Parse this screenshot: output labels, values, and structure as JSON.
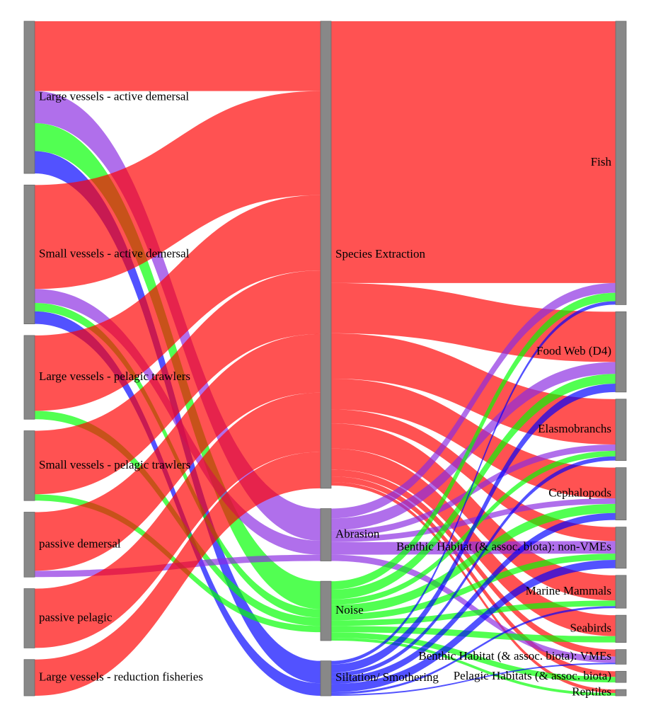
{
  "colors": {
    "Species Extraction": "#ff0000",
    "Abrasion": "#8a2be2",
    "Noise": "#00ff00",
    "Siltation/ Smothering": "#0000ff",
    "node": "#888888"
  },
  "nodes": [
    {
      "id": "ld",
      "label": "Large vessels - active demersal",
      "col": 0
    },
    {
      "id": "sd",
      "label": "Small vessels - active demersal",
      "col": 0
    },
    {
      "id": "lp",
      "label": "Large vessels - pelagic trawlers",
      "col": 0
    },
    {
      "id": "sp",
      "label": "Small vessels - pelagic trawlers",
      "col": 0
    },
    {
      "id": "pd",
      "label": "passive demersal",
      "col": 0
    },
    {
      "id": "pp",
      "label": "passive pelagic",
      "col": 0
    },
    {
      "id": "lr",
      "label": "Large vessels - reduction fisheries",
      "col": 0
    },
    {
      "id": "se",
      "label": "Species Extraction",
      "col": 1
    },
    {
      "id": "ab",
      "label": "Abrasion",
      "col": 1
    },
    {
      "id": "no",
      "label": "Noise",
      "col": 1
    },
    {
      "id": "si",
      "label": "Siltation/ Smothering",
      "col": 1
    },
    {
      "id": "fi",
      "label": "Fish",
      "col": 2
    },
    {
      "id": "fw",
      "label": "Food Web (D4)",
      "col": 2
    },
    {
      "id": "el",
      "label": "Elasmobranchs",
      "col": 2
    },
    {
      "id": "ce",
      "label": "Cephalopods",
      "col": 2
    },
    {
      "id": "bn",
      "label": "Benthic Habitat (& assoc. biota): non-VMEs",
      "col": 2
    },
    {
      "id": "mm",
      "label": "Marine Mammals",
      "col": 2
    },
    {
      "id": "sb",
      "label": "Seabirds",
      "col": 2
    },
    {
      "id": "bv",
      "label": "Benthic Habitat (& assoc. biota): VMEs",
      "col": 2
    },
    {
      "id": "ph",
      "label": "Pelagic Habitats (& assoc. biota)",
      "col": 2
    },
    {
      "id": "re",
      "label": "Reptiles",
      "col": 2
    }
  ],
  "links": [
    {
      "source": "ld",
      "target": "se",
      "value": 10.0,
      "pressure": "Species Extraction"
    },
    {
      "source": "ld",
      "target": "ab",
      "value": 4.6,
      "pressure": "Abrasion"
    },
    {
      "source": "ld",
      "target": "no",
      "value": 4.0,
      "pressure": "Noise"
    },
    {
      "source": "ld",
      "target": "si",
      "value": 3.2,
      "pressure": "Siltation/ Smothering"
    },
    {
      "source": "sd",
      "target": "se",
      "value": 14.9,
      "pressure": "Species Extraction"
    },
    {
      "source": "sd",
      "target": "ab",
      "value": 2.0,
      "pressure": "Abrasion"
    },
    {
      "source": "sd",
      "target": "no",
      "value": 1.2,
      "pressure": "Noise"
    },
    {
      "source": "sd",
      "target": "si",
      "value": 1.8,
      "pressure": "Siltation/ Smothering"
    },
    {
      "source": "lp",
      "target": "se",
      "value": 10.8,
      "pressure": "Species Extraction"
    },
    {
      "source": "lp",
      "target": "no",
      "value": 1.2,
      "pressure": "Noise"
    },
    {
      "source": "sp",
      "target": "se",
      "value": 9.1,
      "pressure": "Species Extraction"
    },
    {
      "source": "sp",
      "target": "no",
      "value": 0.9,
      "pressure": "Noise"
    },
    {
      "source": "pd",
      "target": "se",
      "value": 8.4,
      "pressure": "Species Extraction"
    },
    {
      "source": "pd",
      "target": "ab",
      "value": 0.9,
      "pressure": "Abrasion"
    },
    {
      "source": "pp",
      "target": "se",
      "value": 8.5,
      "pressure": "Species Extraction"
    },
    {
      "source": "lr",
      "target": "se",
      "value": 5.2,
      "pressure": "Species Extraction"
    },
    {
      "source": "se",
      "target": "fi",
      "value": 37.5,
      "pressure": "Species Extraction"
    },
    {
      "source": "se",
      "target": "fw",
      "value": 7.2,
      "pressure": "Species Extraction"
    },
    {
      "source": "se",
      "target": "el",
      "value": 6.5,
      "pressure": "Species Extraction"
    },
    {
      "source": "se",
      "target": "ce",
      "value": 4.4,
      "pressure": "Species Extraction"
    },
    {
      "source": "se",
      "target": "bn",
      "value": 2.0,
      "pressure": "Species Extraction"
    },
    {
      "source": "se",
      "target": "mm",
      "value": 3.6,
      "pressure": "Species Extraction"
    },
    {
      "source": "se",
      "target": "sb",
      "value": 3.0,
      "pressure": "Species Extraction"
    },
    {
      "source": "se",
      "target": "bv",
      "value": 1.0,
      "pressure": "Species Extraction"
    },
    {
      "source": "se",
      "target": "ph",
      "value": 0.8,
      "pressure": "Species Extraction"
    },
    {
      "source": "se",
      "target": "re",
      "value": 0.5,
      "pressure": "Species Extraction"
    },
    {
      "source": "ab",
      "target": "fi",
      "value": 1.4,
      "pressure": "Abrasion"
    },
    {
      "source": "ab",
      "target": "fw",
      "value": 1.7,
      "pressure": "Abrasion"
    },
    {
      "source": "ab",
      "target": "el",
      "value": 0.9,
      "pressure": "Abrasion"
    },
    {
      "source": "ab",
      "target": "ce",
      "value": 0.8,
      "pressure": "Abrasion"
    },
    {
      "source": "ab",
      "target": "bn",
      "value": 1.8,
      "pressure": "Abrasion"
    },
    {
      "source": "ab",
      "target": "bv",
      "value": 0.9,
      "pressure": "Abrasion"
    },
    {
      "source": "no",
      "target": "fi",
      "value": 1.2,
      "pressure": "Noise"
    },
    {
      "source": "no",
      "target": "fw",
      "value": 1.4,
      "pressure": "Noise"
    },
    {
      "source": "no",
      "target": "el",
      "value": 0.8,
      "pressure": "Noise"
    },
    {
      "source": "no",
      "target": "ce",
      "value": 1.3,
      "pressure": "Noise"
    },
    {
      "source": "no",
      "target": "bn",
      "value": 0.9,
      "pressure": "Noise"
    },
    {
      "source": "no",
      "target": "mm",
      "value": 0.8,
      "pressure": "Noise"
    },
    {
      "source": "no",
      "target": "sb",
      "value": 0.9,
      "pressure": "Noise"
    },
    {
      "source": "no",
      "target": "ph",
      "value": 0.8,
      "pressure": "Noise"
    },
    {
      "source": "no",
      "target": "re",
      "value": 0.4,
      "pressure": "Noise"
    },
    {
      "source": "si",
      "target": "fi",
      "value": 0.5,
      "pressure": "Siltation/ Smothering"
    },
    {
      "source": "si",
      "target": "fw",
      "value": 1.2,
      "pressure": "Siltation/ Smothering"
    },
    {
      "source": "si",
      "target": "el",
      "value": 0.6,
      "pressure": "Siltation/ Smothering"
    },
    {
      "source": "si",
      "target": "ce",
      "value": 1.0,
      "pressure": "Siltation/ Smothering"
    },
    {
      "source": "si",
      "target": "bn",
      "value": 1.2,
      "pressure": "Siltation/ Smothering"
    },
    {
      "source": "si",
      "target": "mm",
      "value": 0.3,
      "pressure": "Siltation/ Smothering"
    },
    {
      "source": "si",
      "target": "bv",
      "value": 0.2,
      "pressure": "Siltation/ Smothering"
    }
  ]
}
